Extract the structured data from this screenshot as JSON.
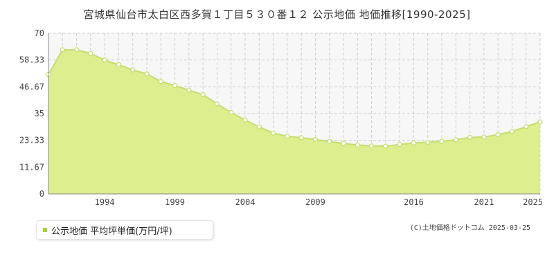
{
  "chart_data": {
    "type": "area",
    "title": "宮城県仙台市太白区西多賀１丁目５３０番１２ 公示地価 地価推移[1990-2025]",
    "xlabel": "",
    "ylabel": "",
    "x": [
      1990,
      1991,
      1992,
      1993,
      1994,
      1995,
      1996,
      1997,
      1998,
      1999,
      2000,
      2001,
      2002,
      2003,
      2004,
      2005,
      2006,
      2007,
      2008,
      2009,
      2010,
      2011,
      2012,
      2013,
      2014,
      2015,
      2016,
      2017,
      2018,
      2019,
      2020,
      2021,
      2022,
      2023,
      2024,
      2025
    ],
    "xlim": [
      1990,
      2025
    ],
    "x_tick_labels": [
      "1994",
      "1999",
      "2004",
      "2009",
      "2016",
      "2021",
      "2025"
    ],
    "x_tick_values": [
      1994,
      1999,
      2004,
      2009,
      2016,
      2021,
      2025
    ],
    "ylim": [
      0,
      70
    ],
    "y_tick_labels": [
      "0",
      "11.67",
      "23.33",
      "35",
      "46.67",
      "58.33",
      "70"
    ],
    "y_tick_values": [
      0,
      11.67,
      23.33,
      35,
      46.67,
      58.33,
      70
    ],
    "series": [
      {
        "name": "公示地価 平均坪単価(万円/坪)",
        "values": [
          52.0,
          62.8,
          62.8,
          61.2,
          58.3,
          56.3,
          54.0,
          52.3,
          49.0,
          47.2,
          45.2,
          43.3,
          39.2,
          35.5,
          32.2,
          29.2,
          26.5,
          25.1,
          24.5,
          23.7,
          22.8,
          22.0,
          21.3,
          20.9,
          20.8,
          21.5,
          22.2,
          22.5,
          22.9,
          23.6,
          24.6,
          24.8,
          25.8,
          27.2,
          29.3,
          31.4
        ]
      }
    ],
    "grid": true,
    "legend_position": "bottom-left",
    "colors": {
      "line": "#c4dd6c",
      "fill": "#dcee8e",
      "marker_fill": "#ffffff",
      "plot_bg_top": "#f7f7f7",
      "grid": "#cccccc",
      "legend_marker": "#a9d23c"
    }
  },
  "legend": {
    "label": "公示地価 平均坪単価(万円/坪)"
  },
  "footer": {
    "copyright": "(C)土地価格ドットコム 2025-03-25"
  }
}
